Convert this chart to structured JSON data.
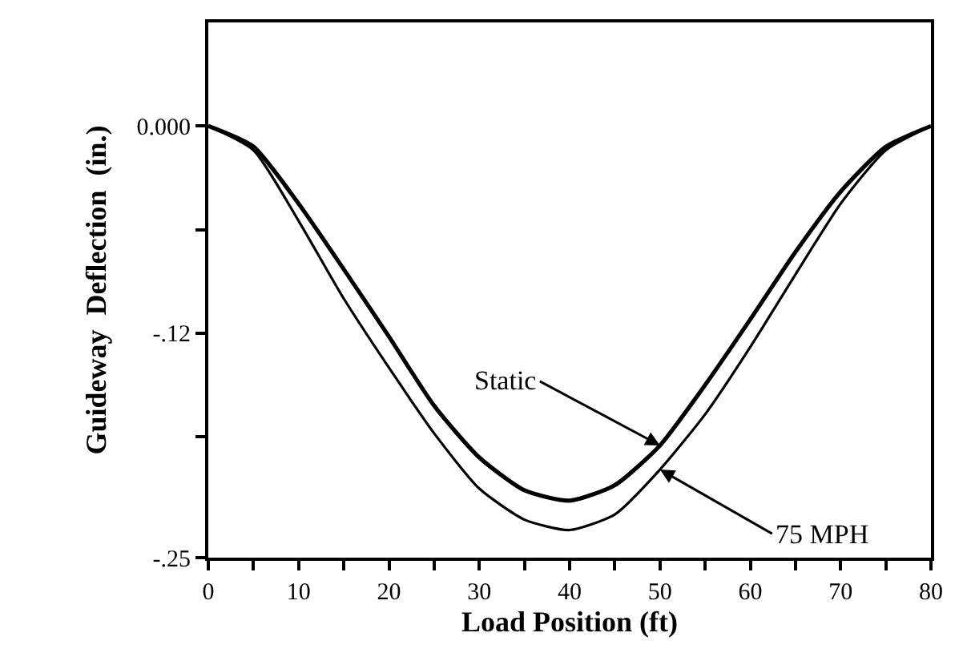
{
  "chart_data": {
    "type": "line",
    "xlabel": "Load Position (ft)",
    "ylabel": "Guideway  Deflection  (in.)",
    "x": [
      0,
      5,
      10,
      15,
      20,
      25,
      30,
      35,
      40,
      45,
      50,
      55,
      60,
      65,
      70,
      75,
      80
    ],
    "series": [
      {
        "name": "Static",
        "color": "#000000",
        "values": [
          0,
          -0.012,
          -0.045,
          -0.083,
          -0.122,
          -0.162,
          -0.192,
          -0.211,
          -0.217,
          -0.208,
          -0.185,
          -0.15,
          -0.112,
          -0.073,
          -0.038,
          -0.012,
          0
        ]
      },
      {
        "name": "75 MPH",
        "color": "#000000",
        "values": [
          0,
          -0.014,
          -0.055,
          -0.1,
          -0.14,
          -0.178,
          -0.21,
          -0.228,
          -0.234,
          -0.225,
          -0.199,
          -0.167,
          -0.128,
          -0.086,
          -0.045,
          -0.014,
          0
        ]
      }
    ],
    "xlim": [
      0,
      80
    ],
    "xticks": [
      0,
      {
        "value": 5,
        "label": null
      },
      10,
      {
        "value": 15,
        "label": null
      },
      20,
      {
        "value": 25,
        "label": null
      },
      30,
      {
        "value": 35,
        "label": null
      },
      40,
      {
        "value": 45,
        "label": null
      },
      50,
      {
        "value": 55,
        "label": null
      },
      60,
      {
        "value": 65,
        "label": null
      },
      70,
      {
        "value": 75,
        "label": null
      },
      80
    ],
    "ylim": [
      -0.25,
      0.06
    ],
    "yticks": [
      {
        "value": 0,
        "label": "0.000"
      },
      {
        "value": -0.06,
        "label": null
      },
      {
        "value": -0.12,
        "label": "-.12"
      },
      {
        "value": -0.18,
        "label": null
      },
      {
        "value": -0.25,
        "label": "-.25"
      }
    ],
    "legend": false,
    "marker": "none",
    "line_style": "solid"
  }
}
